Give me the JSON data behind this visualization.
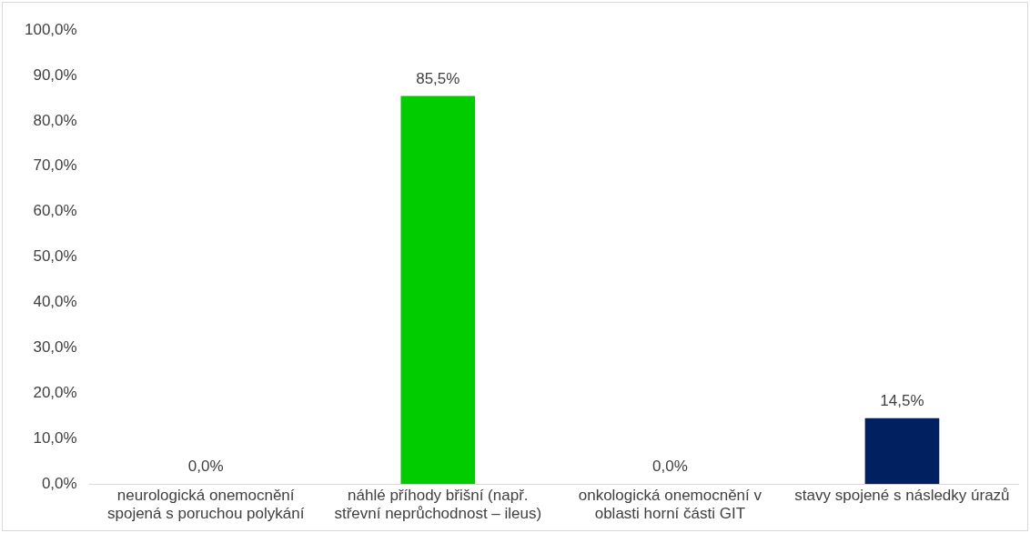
{
  "chart_data": {
    "type": "bar",
    "categories": [
      "neurologická onemocnění spojená s poruchou polykání",
      "náhlé příhody břišní (např. střevní neprůchodnost – ileus)",
      "onkologická onemocnění v oblasti horní části GIT",
      "stavy spojené s následky úrazů"
    ],
    "values": [
      0,
      85.5,
      0,
      14.5
    ],
    "colors": [
      "#4472c4",
      "#00cc00",
      "#ed7d31",
      "#002060"
    ],
    "value_labels": [
      "0,0%",
      "85,5%",
      "0,0%",
      "14,5%"
    ],
    "ylim": [
      0,
      100
    ],
    "yticks": [
      {
        "value": 0,
        "label": "0,0%"
      },
      {
        "value": 10,
        "label": "10,0%"
      },
      {
        "value": 20,
        "label": "20,0%"
      },
      {
        "value": 30,
        "label": "30,0%"
      },
      {
        "value": 40,
        "label": "40,0%"
      },
      {
        "value": 50,
        "label": "50,0%"
      },
      {
        "value": 60,
        "label": "60,0%"
      },
      {
        "value": 70,
        "label": "70,0%"
      },
      {
        "value": 80,
        "label": "80,0%"
      },
      {
        "value": 90,
        "label": "90,0%"
      },
      {
        "value": 100,
        "label": "100,0%"
      }
    ],
    "grid": false,
    "legend": false
  }
}
